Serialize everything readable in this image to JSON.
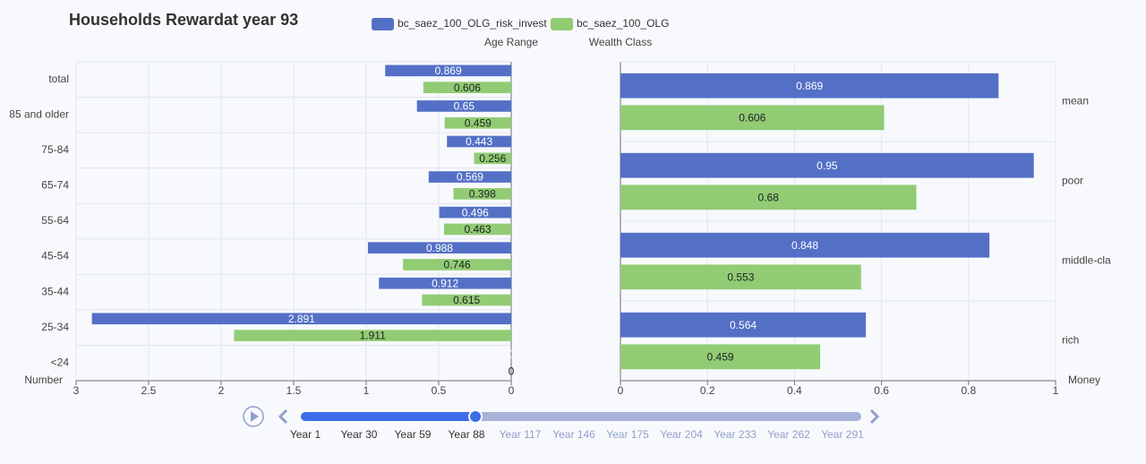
{
  "title": "Households Rewardat year 93",
  "chart_data": [
    {
      "type": "bar",
      "orientation": "horizontal",
      "inverse": true,
      "category_axis_side": "left",
      "y_axis_name": "Age Range",
      "x_axis_name": "Number",
      "categories": [
        "total",
        "85 and older",
        "75-84",
        "65-74",
        "55-64",
        "45-54",
        "35-44",
        "25-34",
        "<24"
      ],
      "series": [
        {
          "name": "bc_saez_100_OLG_risk_invest",
          "color": "#5470c6",
          "values": [
            0.869,
            0.65,
            0.443,
            0.569,
            0.496,
            0.988,
            0.912,
            2.891,
            0
          ]
        },
        {
          "name": "bc_saez_100_OLG",
          "color": "#91cc75",
          "values": [
            0.606,
            0.459,
            0.256,
            0.398,
            0.463,
            0.746,
            0.615,
            1.911,
            0
          ]
        }
      ],
      "xlim": [
        0,
        3
      ],
      "xticks": [
        0,
        0.5,
        1,
        1.5,
        2,
        2.5,
        3
      ],
      "grid": true
    },
    {
      "type": "bar",
      "orientation": "horizontal",
      "inverse": false,
      "category_axis_side": "right",
      "y_axis_name": "Wealth Class",
      "x_axis_name": "Money",
      "categories": [
        "mean",
        "poor",
        "middle-cla",
        "rich"
      ],
      "series": [
        {
          "color": "#5470c6",
          "values": [
            0.869,
            0.95,
            0.848,
            0.564
          ]
        },
        {
          "color": "#91cc75",
          "values": [
            0.606,
            0.68,
            0.553,
            0.459
          ]
        }
      ],
      "xlim": [
        0,
        1
      ],
      "xticks": [
        0,
        0.2,
        0.4,
        0.6,
        0.8,
        1
      ],
      "grid": true
    }
  ],
  "timeline": {
    "labels": [
      "Year 1",
      "Year 30",
      "Year 59",
      "Year 88",
      "Year 117",
      "Year 146",
      "Year 175",
      "Year 204",
      "Year 233",
      "Year 262",
      "Year 291"
    ],
    "current": 3
  }
}
